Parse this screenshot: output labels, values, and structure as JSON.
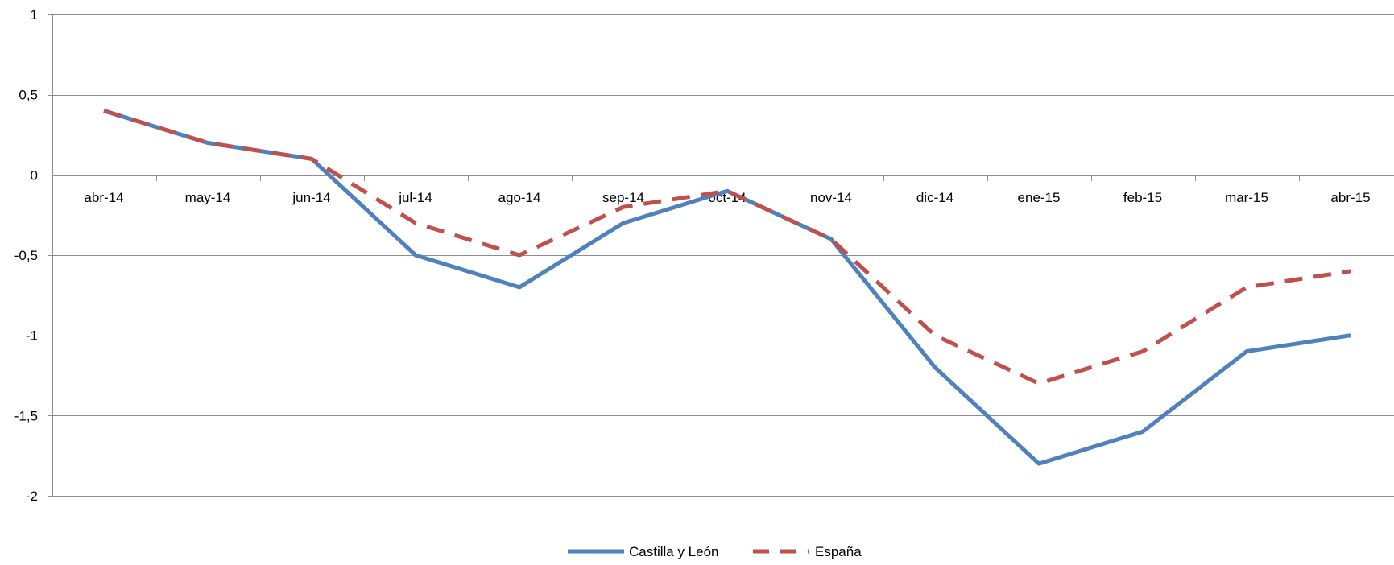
{
  "chart_data": {
    "type": "line",
    "title": "",
    "xlabel": "",
    "ylabel": "",
    "categories": [
      "abr-14",
      "may-14",
      "jun-14",
      "jul-14",
      "ago-14",
      "sep-14",
      "oct-14",
      "nov-14",
      "dic-14",
      "ene-15",
      "feb-15",
      "mar-15",
      "abr-15"
    ],
    "ylim": [
      -2,
      1
    ],
    "yticks": [
      1,
      0.5,
      0,
      -0.5,
      -1,
      -1.5,
      -2
    ],
    "ytick_labels": [
      "1",
      "0,5",
      "0",
      "-0,5",
      "-1",
      "-1,5",
      "-2"
    ],
    "grid": true,
    "legend_position": "bottom-center",
    "series": [
      {
        "name": "Castilla y León",
        "color": "#4F81BD",
        "style": "solid",
        "values": [
          0.4,
          0.2,
          0.1,
          -0.5,
          -0.7,
          -0.3,
          -0.1,
          -0.4,
          -1.2,
          -1.8,
          -1.6,
          -1.1,
          -1.0
        ]
      },
      {
        "name": "España",
        "color": "#C0504D",
        "style": "dashed",
        "values": [
          0.4,
          0.2,
          0.1,
          -0.3,
          -0.5,
          -0.2,
          -0.1,
          -0.4,
          -1.0,
          -1.3,
          -1.1,
          -0.7,
          -0.6
        ]
      }
    ]
  }
}
